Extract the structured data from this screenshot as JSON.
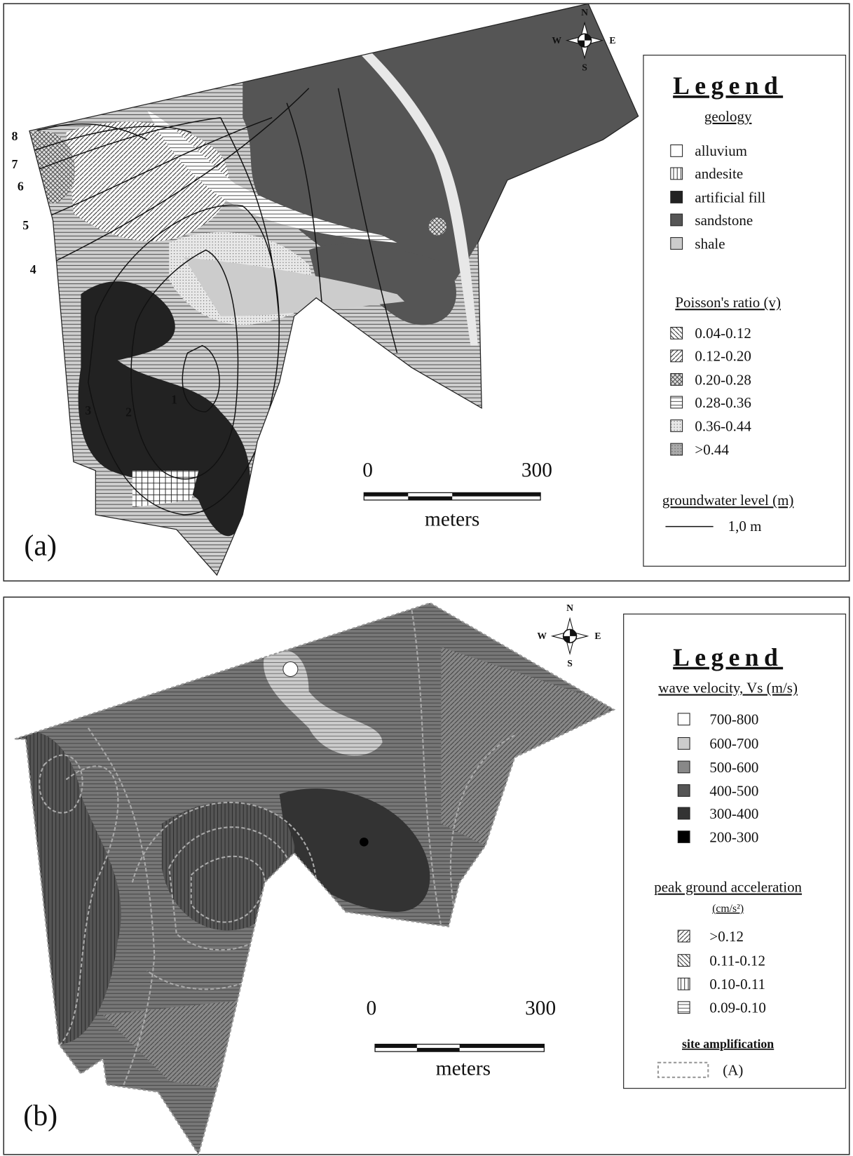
{
  "panels": [
    {
      "label": "(a)",
      "compass": {
        "north": "N",
        "south": "S",
        "west": "W",
        "east": "E"
      },
      "contour_labels": [
        "8",
        "7",
        "6",
        "5",
        "4",
        "3",
        "2",
        "1"
      ],
      "scale_bar": {
        "start": "0",
        "end": "300",
        "unit": "meters"
      },
      "legend": {
        "title": "Legend",
        "sections": [
          {
            "title": "geology",
            "items": [
              "alluvium",
              "andesite",
              "artificial fill",
              "sandstone",
              "shale"
            ]
          },
          {
            "title": "Poisson's ratio (v)",
            "items": [
              "0.04-0.12",
              "0.12-0.20",
              "0.20-0.28",
              "0.28-0.36",
              "0.36-0.44",
              ">0.44"
            ]
          },
          {
            "title": "groundwater level (m)",
            "items": [
              "1,0 m"
            ]
          }
        ]
      }
    },
    {
      "label": "(b)",
      "compass": {
        "north": "N",
        "south": "S",
        "west": "W",
        "east": "E"
      },
      "scale_bar": {
        "start": "0",
        "end": "300",
        "unit": "meters"
      },
      "legend": {
        "title": "Legend",
        "sections": [
          {
            "title": "wave velocity, Vs (m/s)",
            "items": [
              "700-800",
              "600-700",
              "500-600",
              "400-500",
              "300-400",
              "200-300"
            ]
          },
          {
            "title": "peak ground acceleration",
            "subtitle": "(cm/s²)",
            "items": [
              ">0.12",
              "0.11-0.12",
              "0.10-0.11",
              "0.09-0.10"
            ]
          },
          {
            "title": "site amplification",
            "items": [
              "(A)"
            ]
          }
        ]
      }
    }
  ]
}
